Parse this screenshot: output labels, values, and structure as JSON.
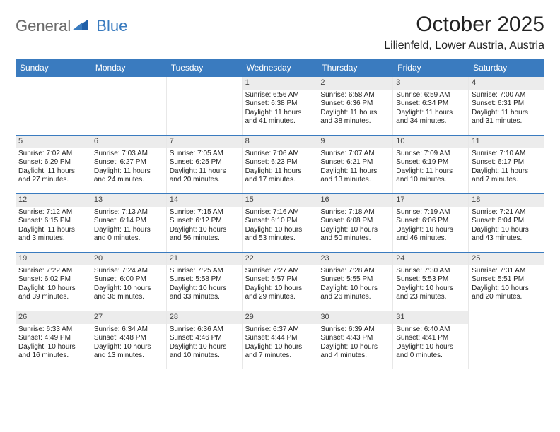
{
  "logo": {
    "gen": "General",
    "blue": "Blue"
  },
  "title": "October 2025",
  "location": "Lilienfeld, Lower Austria, Austria",
  "colors": {
    "header_blue": "#3a7bbf",
    "daynum_bg": "#ececec",
    "border_blue": "#3a7bbf"
  },
  "day_names": [
    "Sunday",
    "Monday",
    "Tuesday",
    "Wednesday",
    "Thursday",
    "Friday",
    "Saturday"
  ],
  "weeks": [
    [
      {
        "n": "",
        "sr": "",
        "ss": "",
        "dl": ""
      },
      {
        "n": "",
        "sr": "",
        "ss": "",
        "dl": ""
      },
      {
        "n": "",
        "sr": "",
        "ss": "",
        "dl": ""
      },
      {
        "n": "1",
        "sr": "Sunrise: 6:56 AM",
        "ss": "Sunset: 6:38 PM",
        "dl": "Daylight: 11 hours and 41 minutes."
      },
      {
        "n": "2",
        "sr": "Sunrise: 6:58 AM",
        "ss": "Sunset: 6:36 PM",
        "dl": "Daylight: 11 hours and 38 minutes."
      },
      {
        "n": "3",
        "sr": "Sunrise: 6:59 AM",
        "ss": "Sunset: 6:34 PM",
        "dl": "Daylight: 11 hours and 34 minutes."
      },
      {
        "n": "4",
        "sr": "Sunrise: 7:00 AM",
        "ss": "Sunset: 6:31 PM",
        "dl": "Daylight: 11 hours and 31 minutes."
      }
    ],
    [
      {
        "n": "5",
        "sr": "Sunrise: 7:02 AM",
        "ss": "Sunset: 6:29 PM",
        "dl": "Daylight: 11 hours and 27 minutes."
      },
      {
        "n": "6",
        "sr": "Sunrise: 7:03 AM",
        "ss": "Sunset: 6:27 PM",
        "dl": "Daylight: 11 hours and 24 minutes."
      },
      {
        "n": "7",
        "sr": "Sunrise: 7:05 AM",
        "ss": "Sunset: 6:25 PM",
        "dl": "Daylight: 11 hours and 20 minutes."
      },
      {
        "n": "8",
        "sr": "Sunrise: 7:06 AM",
        "ss": "Sunset: 6:23 PM",
        "dl": "Daylight: 11 hours and 17 minutes."
      },
      {
        "n": "9",
        "sr": "Sunrise: 7:07 AM",
        "ss": "Sunset: 6:21 PM",
        "dl": "Daylight: 11 hours and 13 minutes."
      },
      {
        "n": "10",
        "sr": "Sunrise: 7:09 AM",
        "ss": "Sunset: 6:19 PM",
        "dl": "Daylight: 11 hours and 10 minutes."
      },
      {
        "n": "11",
        "sr": "Sunrise: 7:10 AM",
        "ss": "Sunset: 6:17 PM",
        "dl": "Daylight: 11 hours and 7 minutes."
      }
    ],
    [
      {
        "n": "12",
        "sr": "Sunrise: 7:12 AM",
        "ss": "Sunset: 6:15 PM",
        "dl": "Daylight: 11 hours and 3 minutes."
      },
      {
        "n": "13",
        "sr": "Sunrise: 7:13 AM",
        "ss": "Sunset: 6:14 PM",
        "dl": "Daylight: 11 hours and 0 minutes."
      },
      {
        "n": "14",
        "sr": "Sunrise: 7:15 AM",
        "ss": "Sunset: 6:12 PM",
        "dl": "Daylight: 10 hours and 56 minutes."
      },
      {
        "n": "15",
        "sr": "Sunrise: 7:16 AM",
        "ss": "Sunset: 6:10 PM",
        "dl": "Daylight: 10 hours and 53 minutes."
      },
      {
        "n": "16",
        "sr": "Sunrise: 7:18 AM",
        "ss": "Sunset: 6:08 PM",
        "dl": "Daylight: 10 hours and 50 minutes."
      },
      {
        "n": "17",
        "sr": "Sunrise: 7:19 AM",
        "ss": "Sunset: 6:06 PM",
        "dl": "Daylight: 10 hours and 46 minutes."
      },
      {
        "n": "18",
        "sr": "Sunrise: 7:21 AM",
        "ss": "Sunset: 6:04 PM",
        "dl": "Daylight: 10 hours and 43 minutes."
      }
    ],
    [
      {
        "n": "19",
        "sr": "Sunrise: 7:22 AM",
        "ss": "Sunset: 6:02 PM",
        "dl": "Daylight: 10 hours and 39 minutes."
      },
      {
        "n": "20",
        "sr": "Sunrise: 7:24 AM",
        "ss": "Sunset: 6:00 PM",
        "dl": "Daylight: 10 hours and 36 minutes."
      },
      {
        "n": "21",
        "sr": "Sunrise: 7:25 AM",
        "ss": "Sunset: 5:58 PM",
        "dl": "Daylight: 10 hours and 33 minutes."
      },
      {
        "n": "22",
        "sr": "Sunrise: 7:27 AM",
        "ss": "Sunset: 5:57 PM",
        "dl": "Daylight: 10 hours and 29 minutes."
      },
      {
        "n": "23",
        "sr": "Sunrise: 7:28 AM",
        "ss": "Sunset: 5:55 PM",
        "dl": "Daylight: 10 hours and 26 minutes."
      },
      {
        "n": "24",
        "sr": "Sunrise: 7:30 AM",
        "ss": "Sunset: 5:53 PM",
        "dl": "Daylight: 10 hours and 23 minutes."
      },
      {
        "n": "25",
        "sr": "Sunrise: 7:31 AM",
        "ss": "Sunset: 5:51 PM",
        "dl": "Daylight: 10 hours and 20 minutes."
      }
    ],
    [
      {
        "n": "26",
        "sr": "Sunrise: 6:33 AM",
        "ss": "Sunset: 4:49 PM",
        "dl": "Daylight: 10 hours and 16 minutes."
      },
      {
        "n": "27",
        "sr": "Sunrise: 6:34 AM",
        "ss": "Sunset: 4:48 PM",
        "dl": "Daylight: 10 hours and 13 minutes."
      },
      {
        "n": "28",
        "sr": "Sunrise: 6:36 AM",
        "ss": "Sunset: 4:46 PM",
        "dl": "Daylight: 10 hours and 10 minutes."
      },
      {
        "n": "29",
        "sr": "Sunrise: 6:37 AM",
        "ss": "Sunset: 4:44 PM",
        "dl": "Daylight: 10 hours and 7 minutes."
      },
      {
        "n": "30",
        "sr": "Sunrise: 6:39 AM",
        "ss": "Sunset: 4:43 PM",
        "dl": "Daylight: 10 hours and 4 minutes."
      },
      {
        "n": "31",
        "sr": "Sunrise: 6:40 AM",
        "ss": "Sunset: 4:41 PM",
        "dl": "Daylight: 10 hours and 0 minutes."
      },
      {
        "n": "",
        "sr": "",
        "ss": "",
        "dl": ""
      }
    ]
  ]
}
